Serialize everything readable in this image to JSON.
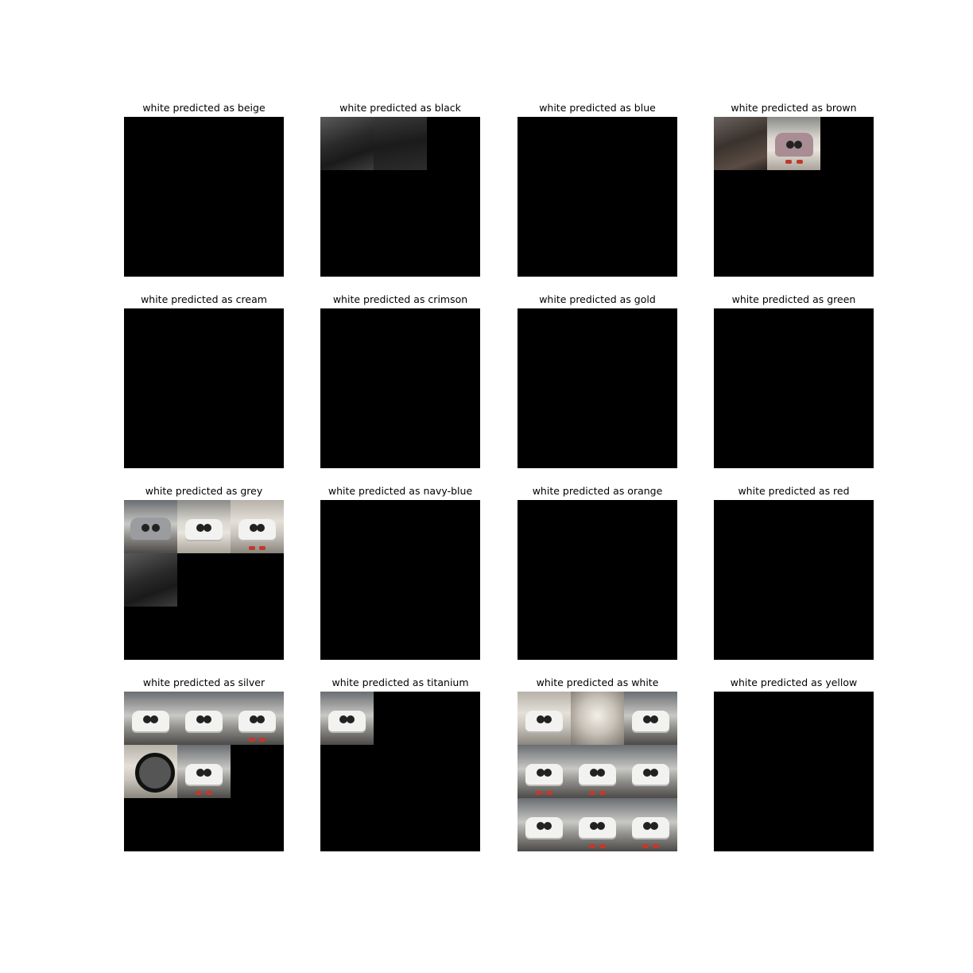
{
  "figure": {
    "panels": [
      {
        "title": "white predicted as beige",
        "thumbs": []
      },
      {
        "title": "white predicted as black",
        "thumbs": [
          "car-interior",
          "car-interior"
        ]
      },
      {
        "title": "white predicted as blue",
        "thumbs": []
      },
      {
        "title": "white predicted as brown",
        "thumbs": [
          "car-interior",
          "car-rear"
        ]
      },
      {
        "title": "white predicted as cream",
        "thumbs": []
      },
      {
        "title": "white predicted as crimson",
        "thumbs": []
      },
      {
        "title": "white predicted as gold",
        "thumbs": []
      },
      {
        "title": "white predicted as green",
        "thumbs": []
      },
      {
        "title": "white predicted as grey",
        "thumbs": [
          "car-side",
          "car-front",
          "car-rear",
          "car-interior"
        ]
      },
      {
        "title": "white predicted as navy-blue",
        "thumbs": []
      },
      {
        "title": "white predicted as orange",
        "thumbs": []
      },
      {
        "title": "white predicted as red",
        "thumbs": []
      },
      {
        "title": "white predicted as silver",
        "thumbs": [
          "car-front",
          "car-front",
          "car-rear",
          "car-wheel",
          "car-rear"
        ]
      },
      {
        "title": "white predicted as titanium",
        "thumbs": [
          "car-front"
        ]
      },
      {
        "title": "white predicted as white",
        "thumbs": [
          "car-side",
          "car-interior",
          "car-front",
          "car-rear",
          "car-rear",
          "car-front",
          "car-front",
          "car-rear",
          "car-rear"
        ]
      },
      {
        "title": "white predicted as yellow",
        "thumbs": []
      }
    ]
  }
}
